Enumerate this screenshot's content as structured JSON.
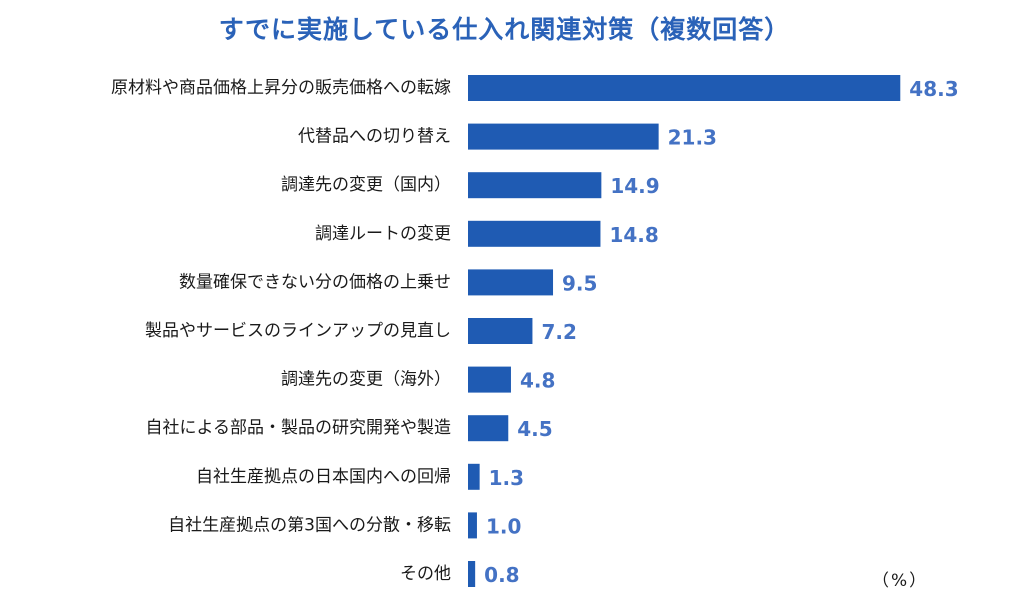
{
  "chart_data": {
    "type": "bar",
    "orientation": "horizontal",
    "title": "すでに実施している仕入れ関連対策（複数回答）",
    "unit": "（%）",
    "categories": [
      "原材料や商品価格上昇分の販売価格への転嫁",
      "代替品への切り替え",
      "調達先の変更（国内）",
      "調達ルートの変更",
      "数量確保できない分の価格の上乗せ",
      "製品やサービスのラインアップの見直し",
      "調達先の変更（海外）",
      "自社による部品・製品の研究開発や製造",
      "自社生産拠点の日本国内への回帰",
      "自社生産拠点の第3国への分散・移転",
      "その他"
    ],
    "values": [
      48.3,
      21.3,
      14.9,
      14.8,
      9.5,
      7.2,
      4.8,
      4.5,
      1.3,
      1.0,
      0.8
    ],
    "value_labels": [
      "48.3",
      "21.3",
      "14.9",
      "14.8",
      "9.5",
      "7.2",
      "4.8",
      "4.5",
      "1.3",
      "1.0",
      "0.8"
    ],
    "bar_color": "#1f5bb3",
    "value_label_color": "#4472c4",
    "title_color": "#2a62b8",
    "grid": false,
    "legend": "none"
  }
}
